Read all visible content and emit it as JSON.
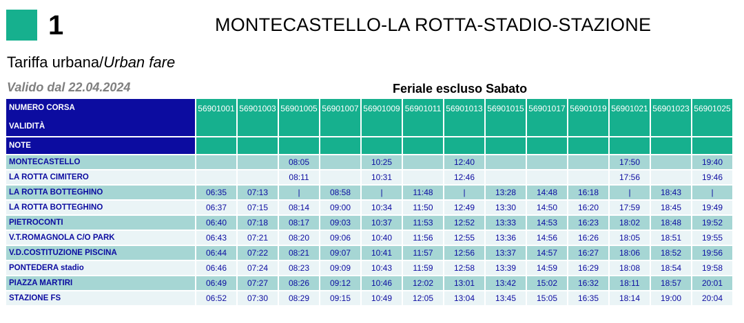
{
  "header": {
    "line_number": "1",
    "route_title": "MONTECASTELLO-LA ROTTA-STADIO-STAZIONE",
    "fare_it": "Tariffa urbana/",
    "fare_en": "Urban fare",
    "valid_from": "Valido dal 22.04.2024",
    "service_day": "Feriale escluso Sabato"
  },
  "colors": {
    "accent_green": "#16b08e",
    "header_blue": "#0c0ca0",
    "row_shaded": "#a6d6d4",
    "row_plain": "#eaf4f6",
    "valid_text": "#7f7f7f"
  },
  "table": {
    "run_label": "NUMERO CORSA",
    "validity_label": "VALIDITÀ",
    "notes_label": "NOTE",
    "runs": [
      "56901001",
      "56901003",
      "56901005",
      "56901007",
      "56901009",
      "56901011",
      "56901013",
      "56901015",
      "56901017",
      "56901019",
      "56901021",
      "56901023",
      "56901025"
    ],
    "stops": [
      {
        "name": "MONTECASTELLO",
        "times": [
          "",
          "",
          "08:05",
          "",
          "10:25",
          "",
          "12:40",
          "",
          "",
          "",
          "17:50",
          "",
          "19:40"
        ]
      },
      {
        "name": "LA ROTTA CIMITERO",
        "times": [
          "",
          "",
          "08:11",
          "",
          "10:31",
          "",
          "12:46",
          "",
          "",
          "",
          "17:56",
          "",
          "19:46"
        ]
      },
      {
        "name": "LA ROTTA BOTTEGHINO",
        "times": [
          "06:35",
          "07:13",
          "|",
          "08:58",
          "|",
          "11:48",
          "|",
          "13:28",
          "14:48",
          "16:18",
          "|",
          "18:43",
          "|"
        ]
      },
      {
        "name": "LA ROTTA BOTTEGHINO",
        "times": [
          "06:37",
          "07:15",
          "08:14",
          "09:00",
          "10:34",
          "11:50",
          "12:49",
          "13:30",
          "14:50",
          "16:20",
          "17:59",
          "18:45",
          "19:49"
        ]
      },
      {
        "name": "PIETROCONTI",
        "times": [
          "06:40",
          "07:18",
          "08:17",
          "09:03",
          "10:37",
          "11:53",
          "12:52",
          "13:33",
          "14:53",
          "16:23",
          "18:02",
          "18:48",
          "19:52"
        ]
      },
      {
        "name": "V.T.ROMAGNOLA C/O PARK",
        "times": [
          "06:43",
          "07:21",
          "08:20",
          "09:06",
          "10:40",
          "11:56",
          "12:55",
          "13:36",
          "14:56",
          "16:26",
          "18:05",
          "18:51",
          "19:55"
        ]
      },
      {
        "name": "V.D.COSTITUZIONE PISCINA",
        "times": [
          "06:44",
          "07:22",
          "08:21",
          "09:07",
          "10:41",
          "11:57",
          "12:56",
          "13:37",
          "14:57",
          "16:27",
          "18:06",
          "18:52",
          "19:56"
        ]
      },
      {
        "name": "PONTEDERA stadio",
        "times": [
          "06:46",
          "07:24",
          "08:23",
          "09:09",
          "10:43",
          "11:59",
          "12:58",
          "13:39",
          "14:59",
          "16:29",
          "18:08",
          "18:54",
          "19:58"
        ]
      },
      {
        "name": "PIAZZA MARTIRI",
        "times": [
          "06:49",
          "07:27",
          "08:26",
          "09:12",
          "10:46",
          "12:02",
          "13:01",
          "13:42",
          "15:02",
          "16:32",
          "18:11",
          "18:57",
          "20:01"
        ]
      },
      {
        "name": "STAZIONE FS",
        "times": [
          "06:52",
          "07:30",
          "08:29",
          "09:15",
          "10:49",
          "12:05",
          "13:04",
          "13:45",
          "15:05",
          "16:35",
          "18:14",
          "19:00",
          "20:04"
        ]
      }
    ]
  }
}
